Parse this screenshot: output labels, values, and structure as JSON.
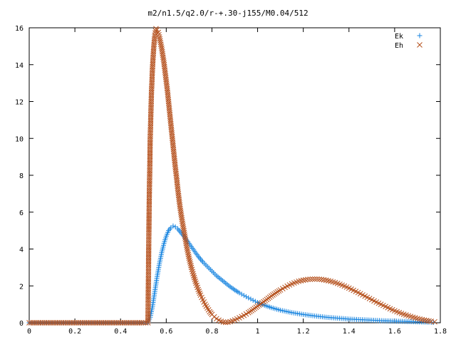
{
  "chart_data": {
    "type": "scatter",
    "title": "m2/n1.5/q2.0/r-+.30-j155/M0.04/512",
    "xlabel": "",
    "ylabel": "",
    "xlim": [
      0,
      1.8
    ],
    "ylim": [
      0,
      16
    ],
    "xticks": [
      "0",
      "0.2",
      "0.4",
      "0.6",
      "0.8",
      "1",
      "1.2",
      "1.4",
      "1.6",
      "1.8"
    ],
    "yticks": [
      "0",
      "2",
      "4",
      "6",
      "8",
      "10",
      "12",
      "14",
      "16"
    ],
    "grid": false,
    "legend_position": "top-right",
    "series": [
      {
        "name": "Ek",
        "marker": "plus",
        "color": "#1a86e0",
        "points": [
          [
            0.0,
            0
          ],
          [
            0.1,
            0
          ],
          [
            0.2,
            0
          ],
          [
            0.3,
            0
          ],
          [
            0.4,
            0
          ],
          [
            0.5,
            0
          ],
          [
            0.52,
            0
          ],
          [
            0.53,
            0.3
          ],
          [
            0.54,
            0.9
          ],
          [
            0.55,
            1.7
          ],
          [
            0.56,
            2.5
          ],
          [
            0.57,
            3.2
          ],
          [
            0.58,
            3.8
          ],
          [
            0.59,
            4.3
          ],
          [
            0.6,
            4.7
          ],
          [
            0.61,
            5.0
          ],
          [
            0.62,
            5.15
          ],
          [
            0.63,
            5.25
          ],
          [
            0.64,
            5.2
          ],
          [
            0.65,
            5.1
          ],
          [
            0.66,
            4.95
          ],
          [
            0.68,
            4.65
          ],
          [
            0.7,
            4.3
          ],
          [
            0.72,
            3.95
          ],
          [
            0.74,
            3.6
          ],
          [
            0.76,
            3.3
          ],
          [
            0.78,
            3.05
          ],
          [
            0.8,
            2.8
          ],
          [
            0.82,
            2.55
          ],
          [
            0.84,
            2.35
          ],
          [
            0.86,
            2.15
          ],
          [
            0.88,
            1.95
          ],
          [
            0.9,
            1.78
          ],
          [
            0.92,
            1.62
          ],
          [
            0.94,
            1.48
          ],
          [
            0.96,
            1.35
          ],
          [
            0.98,
            1.22
          ],
          [
            1.0,
            1.1
          ],
          [
            1.03,
            0.95
          ],
          [
            1.06,
            0.82
          ],
          [
            1.1,
            0.68
          ],
          [
            1.15,
            0.55
          ],
          [
            1.2,
            0.45
          ],
          [
            1.25,
            0.37
          ],
          [
            1.3,
            0.3
          ],
          [
            1.35,
            0.25
          ],
          [
            1.4,
            0.2
          ],
          [
            1.45,
            0.17
          ],
          [
            1.5,
            0.14
          ],
          [
            1.55,
            0.11
          ],
          [
            1.6,
            0.09
          ],
          [
            1.65,
            0.07
          ],
          [
            1.7,
            0.05
          ],
          [
            1.75,
            0.03
          ],
          [
            1.77,
            0.02
          ]
        ]
      },
      {
        "name": "Eh",
        "marker": "cross",
        "color": "#b5501c",
        "points": [
          [
            0.0,
            0
          ],
          [
            0.1,
            0
          ],
          [
            0.2,
            0
          ],
          [
            0.3,
            0
          ],
          [
            0.4,
            0
          ],
          [
            0.5,
            0
          ],
          [
            0.52,
            0
          ],
          [
            0.525,
            6.2
          ],
          [
            0.53,
            10.1
          ],
          [
            0.535,
            12.4
          ],
          [
            0.54,
            13.9
          ],
          [
            0.545,
            14.9
          ],
          [
            0.55,
            15.6
          ],
          [
            0.555,
            15.95
          ],
          [
            0.56,
            15.9
          ],
          [
            0.565,
            15.75
          ],
          [
            0.57,
            15.5
          ],
          [
            0.575,
            15.2
          ],
          [
            0.58,
            14.9
          ],
          [
            0.585,
            14.5
          ],
          [
            0.59,
            14.1
          ],
          [
            0.595,
            13.6
          ],
          [
            0.6,
            13.1
          ],
          [
            0.605,
            12.6
          ],
          [
            0.61,
            12.0
          ],
          [
            0.615,
            11.4
          ],
          [
            0.62,
            10.8
          ],
          [
            0.625,
            10.2
          ],
          [
            0.63,
            9.6
          ],
          [
            0.635,
            9.0
          ],
          [
            0.64,
            8.4
          ],
          [
            0.645,
            7.9
          ],
          [
            0.65,
            7.3
          ],
          [
            0.655,
            6.8
          ],
          [
            0.66,
            6.3
          ],
          [
            0.67,
            5.5
          ],
          [
            0.68,
            4.8
          ],
          [
            0.69,
            4.1
          ],
          [
            0.7,
            3.5
          ],
          [
            0.71,
            3.0
          ],
          [
            0.72,
            2.55
          ],
          [
            0.73,
            2.15
          ],
          [
            0.74,
            1.8
          ],
          [
            0.75,
            1.5
          ],
          [
            0.76,
            1.25
          ],
          [
            0.77,
            1.0
          ],
          [
            0.78,
            0.8
          ],
          [
            0.79,
            0.6
          ],
          [
            0.8,
            0.45
          ],
          [
            0.81,
            0.32
          ],
          [
            0.82,
            0.22
          ],
          [
            0.83,
            0.14
          ],
          [
            0.84,
            0.08
          ],
          [
            0.85,
            0.04
          ],
          [
            0.86,
            0.02
          ],
          [
            0.87,
            0.03
          ],
          [
            0.88,
            0.06
          ],
          [
            0.89,
            0.1
          ],
          [
            0.9,
            0.15
          ],
          [
            0.92,
            0.27
          ],
          [
            0.94,
            0.4
          ],
          [
            0.96,
            0.55
          ],
          [
            0.98,
            0.72
          ],
          [
            1.0,
            0.9
          ],
          [
            1.02,
            1.08
          ],
          [
            1.04,
            1.26
          ],
          [
            1.06,
            1.45
          ],
          [
            1.08,
            1.62
          ],
          [
            1.1,
            1.78
          ],
          [
            1.12,
            1.92
          ],
          [
            1.14,
            2.05
          ],
          [
            1.16,
            2.16
          ],
          [
            1.18,
            2.25
          ],
          [
            1.2,
            2.31
          ],
          [
            1.22,
            2.35
          ],
          [
            1.24,
            2.37
          ],
          [
            1.26,
            2.37
          ],
          [
            1.28,
            2.35
          ],
          [
            1.3,
            2.31
          ],
          [
            1.32,
            2.25
          ],
          [
            1.34,
            2.18
          ],
          [
            1.36,
            2.09
          ],
          [
            1.38,
            1.99
          ],
          [
            1.4,
            1.88
          ],
          [
            1.42,
            1.76
          ],
          [
            1.44,
            1.64
          ],
          [
            1.46,
            1.51
          ],
          [
            1.48,
            1.38
          ],
          [
            1.5,
            1.25
          ],
          [
            1.52,
            1.12
          ],
          [
            1.54,
            1.0
          ],
          [
            1.56,
            0.88
          ],
          [
            1.58,
            0.76
          ],
          [
            1.6,
            0.65
          ],
          [
            1.62,
            0.55
          ],
          [
            1.64,
            0.46
          ],
          [
            1.66,
            0.38
          ],
          [
            1.68,
            0.3
          ],
          [
            1.7,
            0.23
          ],
          [
            1.72,
            0.17
          ],
          [
            1.74,
            0.12
          ],
          [
            1.76,
            0.08
          ],
          [
            1.775,
            0.05
          ]
        ]
      }
    ]
  }
}
